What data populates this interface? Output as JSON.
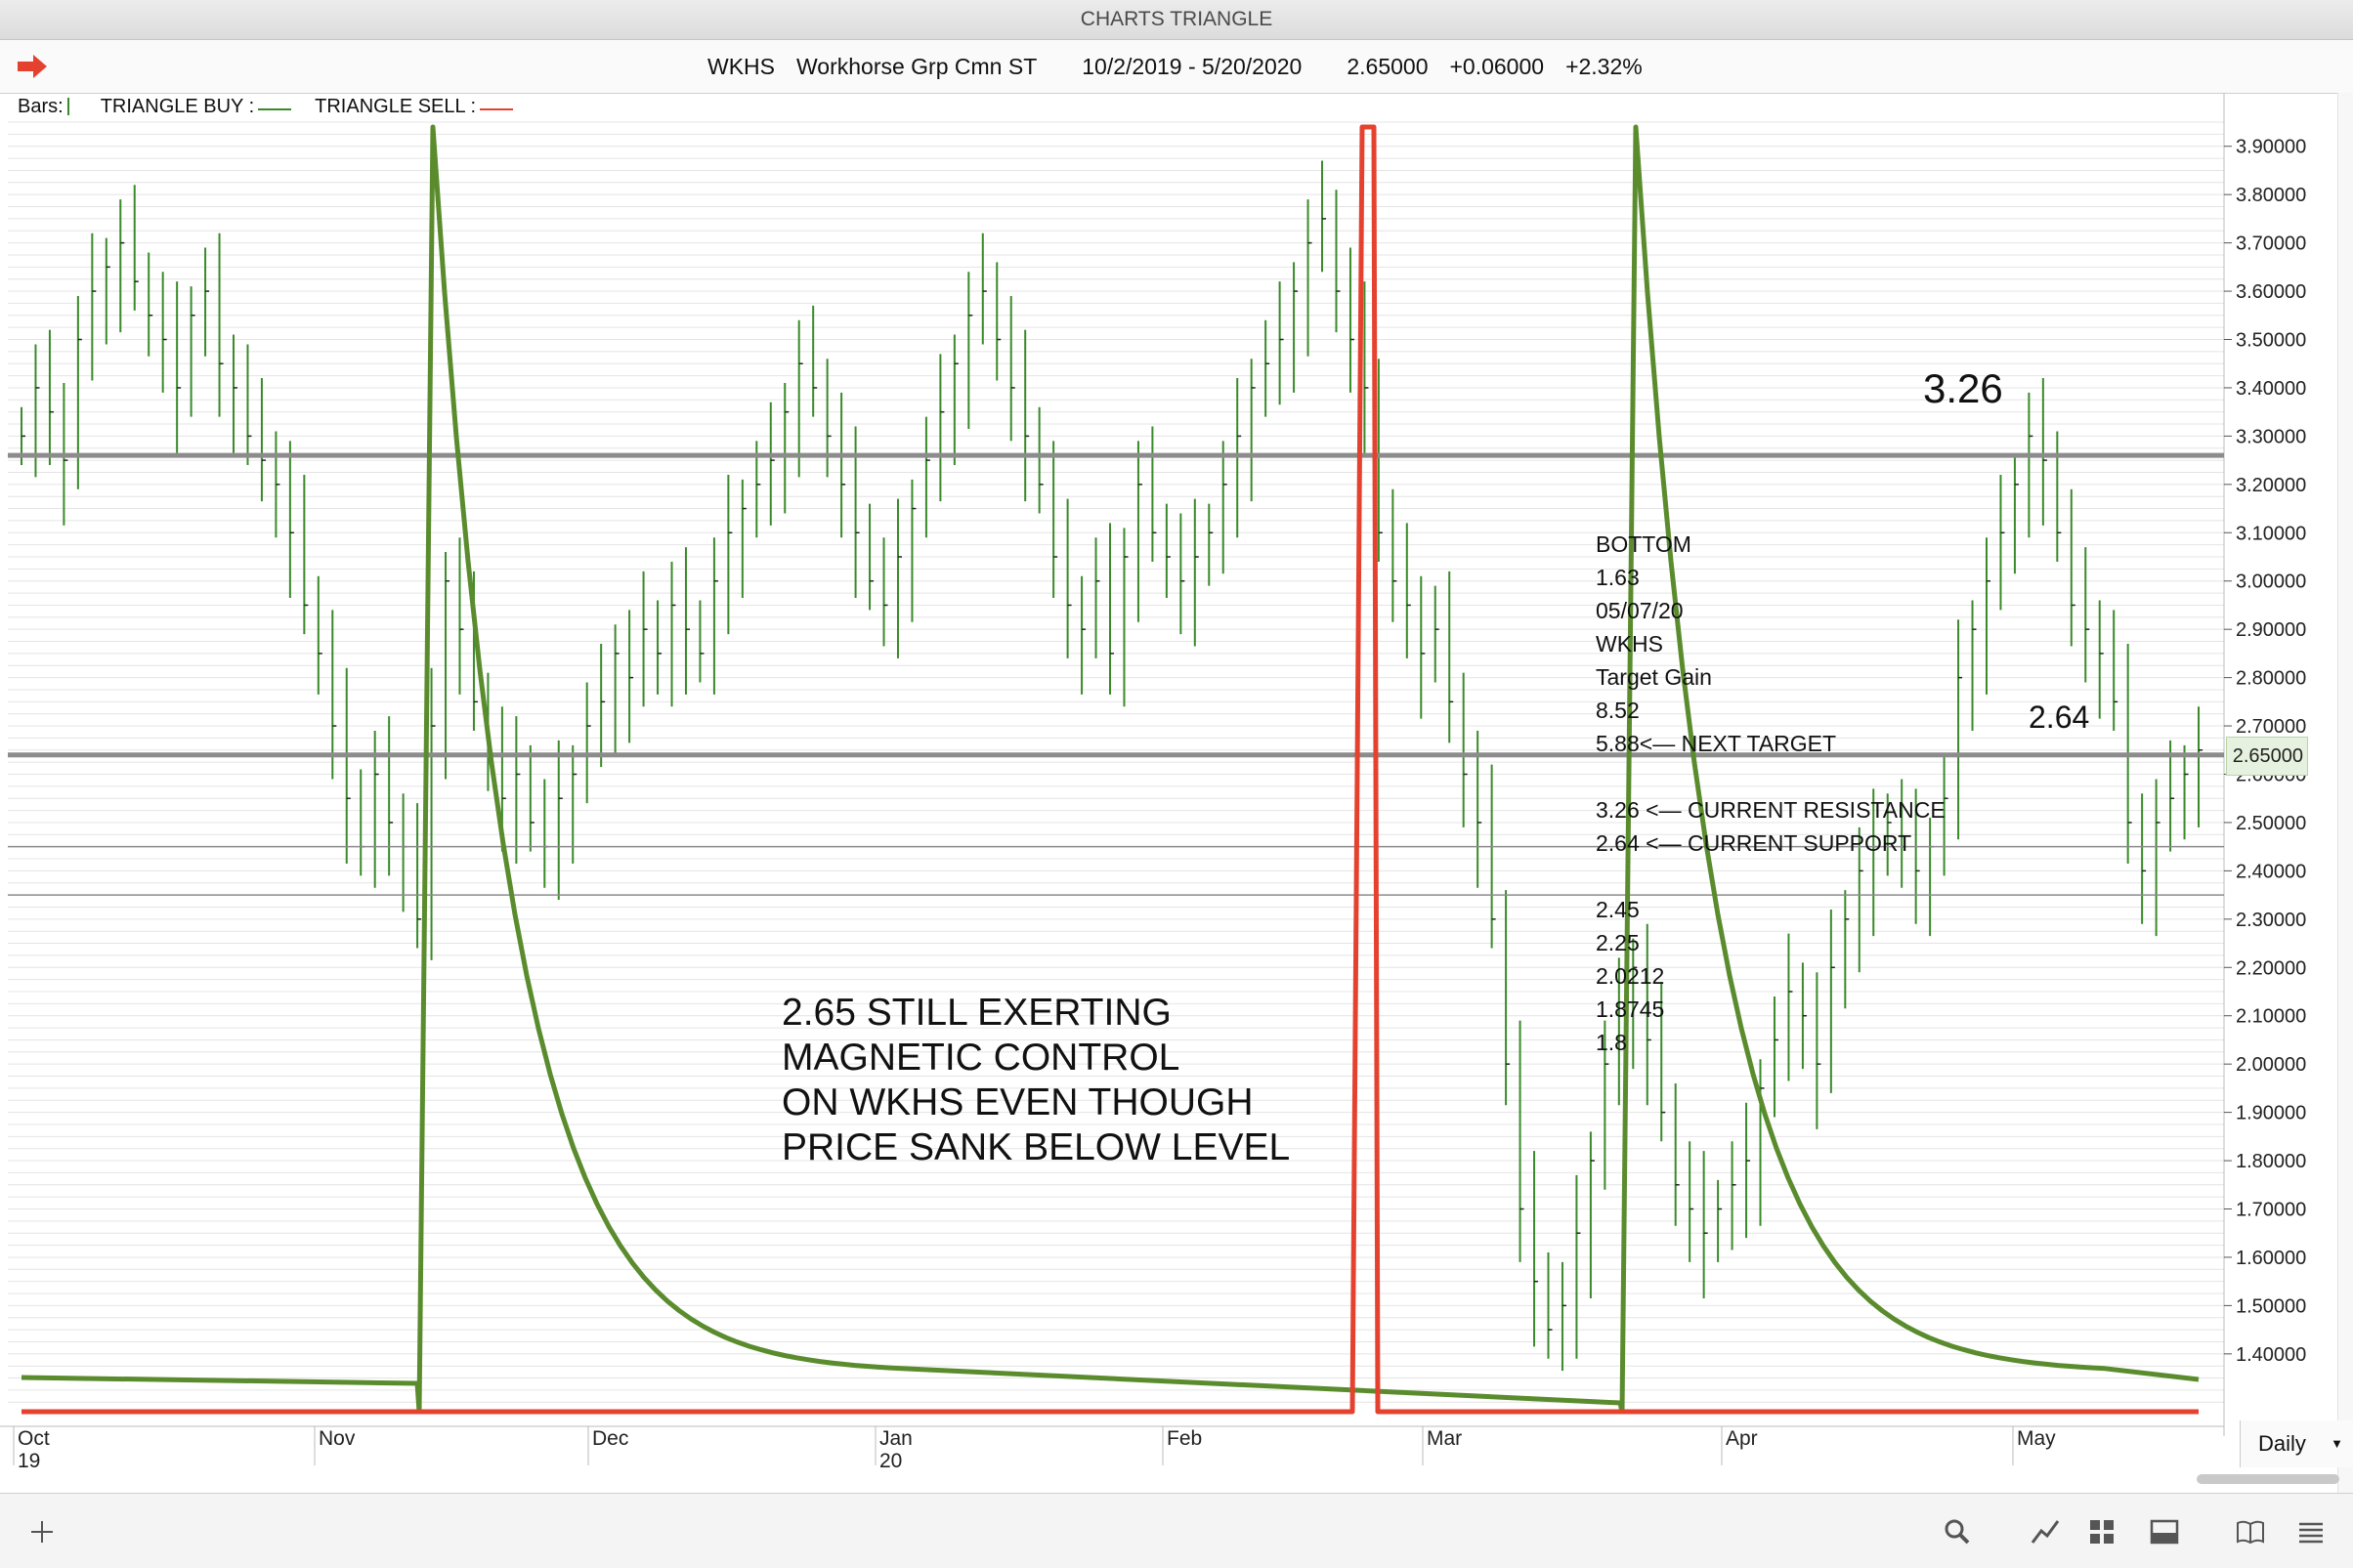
{
  "window": {
    "title": "CHARTS TRIANGLE"
  },
  "header": {
    "symbol": "WKHS",
    "company": "Workhorse Grp Cmn ST",
    "date_range": "10/2/2019 - 5/20/2020",
    "last": "2.65000",
    "change": "+0.06000",
    "change_pct": "+2.32%"
  },
  "legend": {
    "bars_label": "Bars:",
    "buy_label": "TRIANGLE BUY :",
    "sell_label": "TRIANGLE SELL :"
  },
  "colors": {
    "bars": "#3a8a2a",
    "buy": "#5a8c2e",
    "sell": "#e5412f",
    "hline": "#8c8c8c",
    "grid": "#e4e4e4"
  },
  "annotations": {
    "resistance_callout": "3.26",
    "support_callout": "2.64",
    "note_lines": [
      "2.65 STILL EXERTING",
      "MAGNETIC CONTROL",
      "ON WKHS EVEN THOUGH",
      "PRICE SANK BELOW LEVEL"
    ],
    "levels": {
      "bottom_label": "BOTTOM",
      "bottom_value": "1.63",
      "bottom_date": "05/07/20",
      "symbol": "WKHS",
      "target_label": "Target Gain",
      "target_value": "8.52",
      "next_target": "5.88<— NEXT TARGET",
      "current_resistance": "3.26 <— CURRENT RESISTANCE",
      "current_support": "2.64 <— CURRENT SUPPORT",
      "l1": "2.45",
      "l2": "2.25",
      "l3": "2.0212",
      "l4": "1.8745",
      "l5": "1.8"
    }
  },
  "price_tag": "2.65000",
  "interval": "Daily",
  "toolbar_icons": [
    "add-icon",
    "search-icon",
    "draw-icon",
    "grid-icon",
    "layout-icon",
    "book-icon",
    "list-icon"
  ],
  "chart_data": {
    "type": "bar",
    "x_axis_labels": [
      {
        "label": "Oct",
        "sub": "19"
      },
      {
        "label": "Nov",
        "sub": ""
      },
      {
        "label": "Dec",
        "sub": ""
      },
      {
        "label": "Jan",
        "sub": "20"
      },
      {
        "label": "Feb",
        "sub": ""
      },
      {
        "label": "Mar",
        "sub": ""
      },
      {
        "label": "Apr",
        "sub": ""
      },
      {
        "label": "May",
        "sub": ""
      }
    ],
    "y_ticks": [
      "3.90000",
      "3.80000",
      "3.70000",
      "3.60000",
      "3.50000",
      "3.40000",
      "3.30000",
      "3.20000",
      "3.10000",
      "3.00000",
      "2.90000",
      "2.80000",
      "2.70000",
      "2.60000",
      "2.50000",
      "2.40000",
      "2.30000",
      "2.20000",
      "2.10000",
      "2.00000",
      "1.90000",
      "1.80000",
      "1.70000",
      "1.60000",
      "1.50000",
      "1.40000"
    ],
    "ylim": [
      1.25,
      3.95
    ],
    "horizontal_levels": [
      3.26,
      2.64,
      2.45,
      2.35
    ],
    "price_closes": [
      3.3,
      3.4,
      3.35,
      3.25,
      3.5,
      3.6,
      3.65,
      3.7,
      3.62,
      3.55,
      3.5,
      3.4,
      3.55,
      3.6,
      3.45,
      3.4,
      3.3,
      3.25,
      3.2,
      3.1,
      2.95,
      2.85,
      2.7,
      2.55,
      2.45,
      2.6,
      2.5,
      2.45,
      2.3,
      2.7,
      3.0,
      2.9,
      2.75,
      2.65,
      2.55,
      2.6,
      2.5,
      2.45,
      2.55,
      2.6,
      2.7,
      2.75,
      2.85,
      2.8,
      2.9,
      2.85,
      2.95,
      2.9,
      2.85,
      3.0,
      3.1,
      3.15,
      3.2,
      3.25,
      3.35,
      3.45,
      3.4,
      3.3,
      3.2,
      3.1,
      3.0,
      2.95,
      3.05,
      3.15,
      3.25,
      3.35,
      3.45,
      3.55,
      3.6,
      3.5,
      3.4,
      3.3,
      3.2,
      3.05,
      2.95,
      2.9,
      3.0,
      2.85,
      3.05,
      3.2,
      3.1,
      3.05,
      3.0,
      3.05,
      3.1,
      3.2,
      3.3,
      3.4,
      3.45,
      3.5,
      3.6,
      3.7,
      3.75,
      3.6,
      3.5,
      3.4,
      3.1,
      3.0,
      2.95,
      2.85,
      2.9,
      2.75,
      2.6,
      2.5,
      2.3,
      2.0,
      1.7,
      1.55,
      1.45,
      1.5,
      1.65,
      1.8,
      2.0,
      2.1,
      2.2,
      2.05,
      1.9,
      1.75,
      1.7,
      1.65,
      1.7,
      1.75,
      1.8,
      1.95,
      2.05,
      2.15,
      2.1,
      2.0,
      2.2,
      2.3,
      2.4,
      2.45,
      2.5,
      2.45,
      2.4,
      2.45,
      2.55,
      2.8,
      2.9,
      3.0,
      3.1,
      3.2,
      3.3,
      3.25,
      3.1,
      2.95,
      2.9,
      2.85,
      2.75,
      2.5,
      2.4,
      2.5,
      2.55,
      2.6,
      2.65
    ],
    "series": [
      {
        "name": "TRIANGLE BUY",
        "spikes": [
          "Nov",
          "Mar"
        ]
      },
      {
        "name": "TRIANGLE SELL",
        "spikes": [
          "Feb"
        ]
      }
    ]
  }
}
